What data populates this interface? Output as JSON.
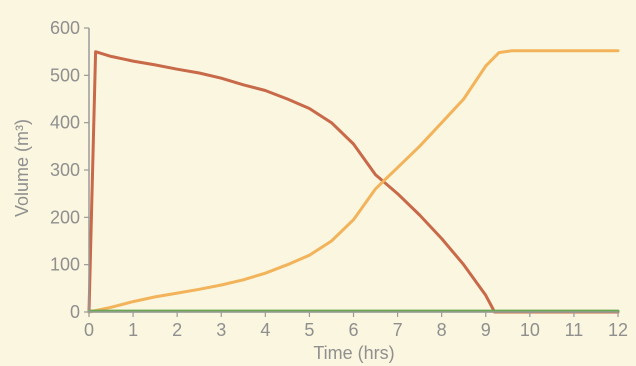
{
  "chart_data": {
    "type": "line",
    "title": "",
    "xlabel": "Time (hrs)",
    "ylabel": "Volume (m³)",
    "xlim": [
      0,
      12
    ],
    "ylim": [
      0,
      600
    ],
    "xticks": [
      0,
      1,
      2,
      3,
      4,
      5,
      6,
      7,
      8,
      9,
      10,
      11,
      12
    ],
    "yticks": [
      0,
      100,
      200,
      300,
      400,
      500,
      600
    ],
    "grid": false,
    "legend": "none",
    "series": [
      {
        "color": "#c8694a",
        "points": [
          [
            0.0,
            0
          ],
          [
            0.15,
            550
          ],
          [
            0.5,
            540
          ],
          [
            1.0,
            530
          ],
          [
            1.5,
            522
          ],
          [
            2.0,
            513
          ],
          [
            2.5,
            505
          ],
          [
            3.0,
            494
          ],
          [
            3.5,
            480
          ],
          [
            4.0,
            468
          ],
          [
            4.5,
            450
          ],
          [
            5.0,
            430
          ],
          [
            5.5,
            400
          ],
          [
            6.0,
            355
          ],
          [
            6.5,
            290
          ],
          [
            7.0,
            250
          ],
          [
            7.5,
            205
          ],
          [
            8.0,
            155
          ],
          [
            8.5,
            100
          ],
          [
            9.0,
            35
          ],
          [
            9.2,
            0
          ],
          [
            12.0,
            0
          ]
        ]
      },
      {
        "color": "#f2b35a",
        "points": [
          [
            0.0,
            0
          ],
          [
            0.5,
            10
          ],
          [
            1.0,
            22
          ],
          [
            1.5,
            32
          ],
          [
            2.0,
            40
          ],
          [
            2.5,
            48
          ],
          [
            3.0,
            57
          ],
          [
            3.5,
            68
          ],
          [
            4.0,
            82
          ],
          [
            4.5,
            100
          ],
          [
            5.0,
            120
          ],
          [
            5.5,
            150
          ],
          [
            6.0,
            195
          ],
          [
            6.5,
            260
          ],
          [
            7.0,
            305
          ],
          [
            7.5,
            350
          ],
          [
            8.0,
            400
          ],
          [
            8.5,
            450
          ],
          [
            9.0,
            520
          ],
          [
            9.3,
            548
          ],
          [
            9.6,
            552
          ],
          [
            12.0,
            552
          ]
        ]
      },
      {
        "color": "#6aa84f",
        "points": [
          [
            0,
            2
          ],
          [
            12,
            2
          ]
        ]
      }
    ]
  }
}
